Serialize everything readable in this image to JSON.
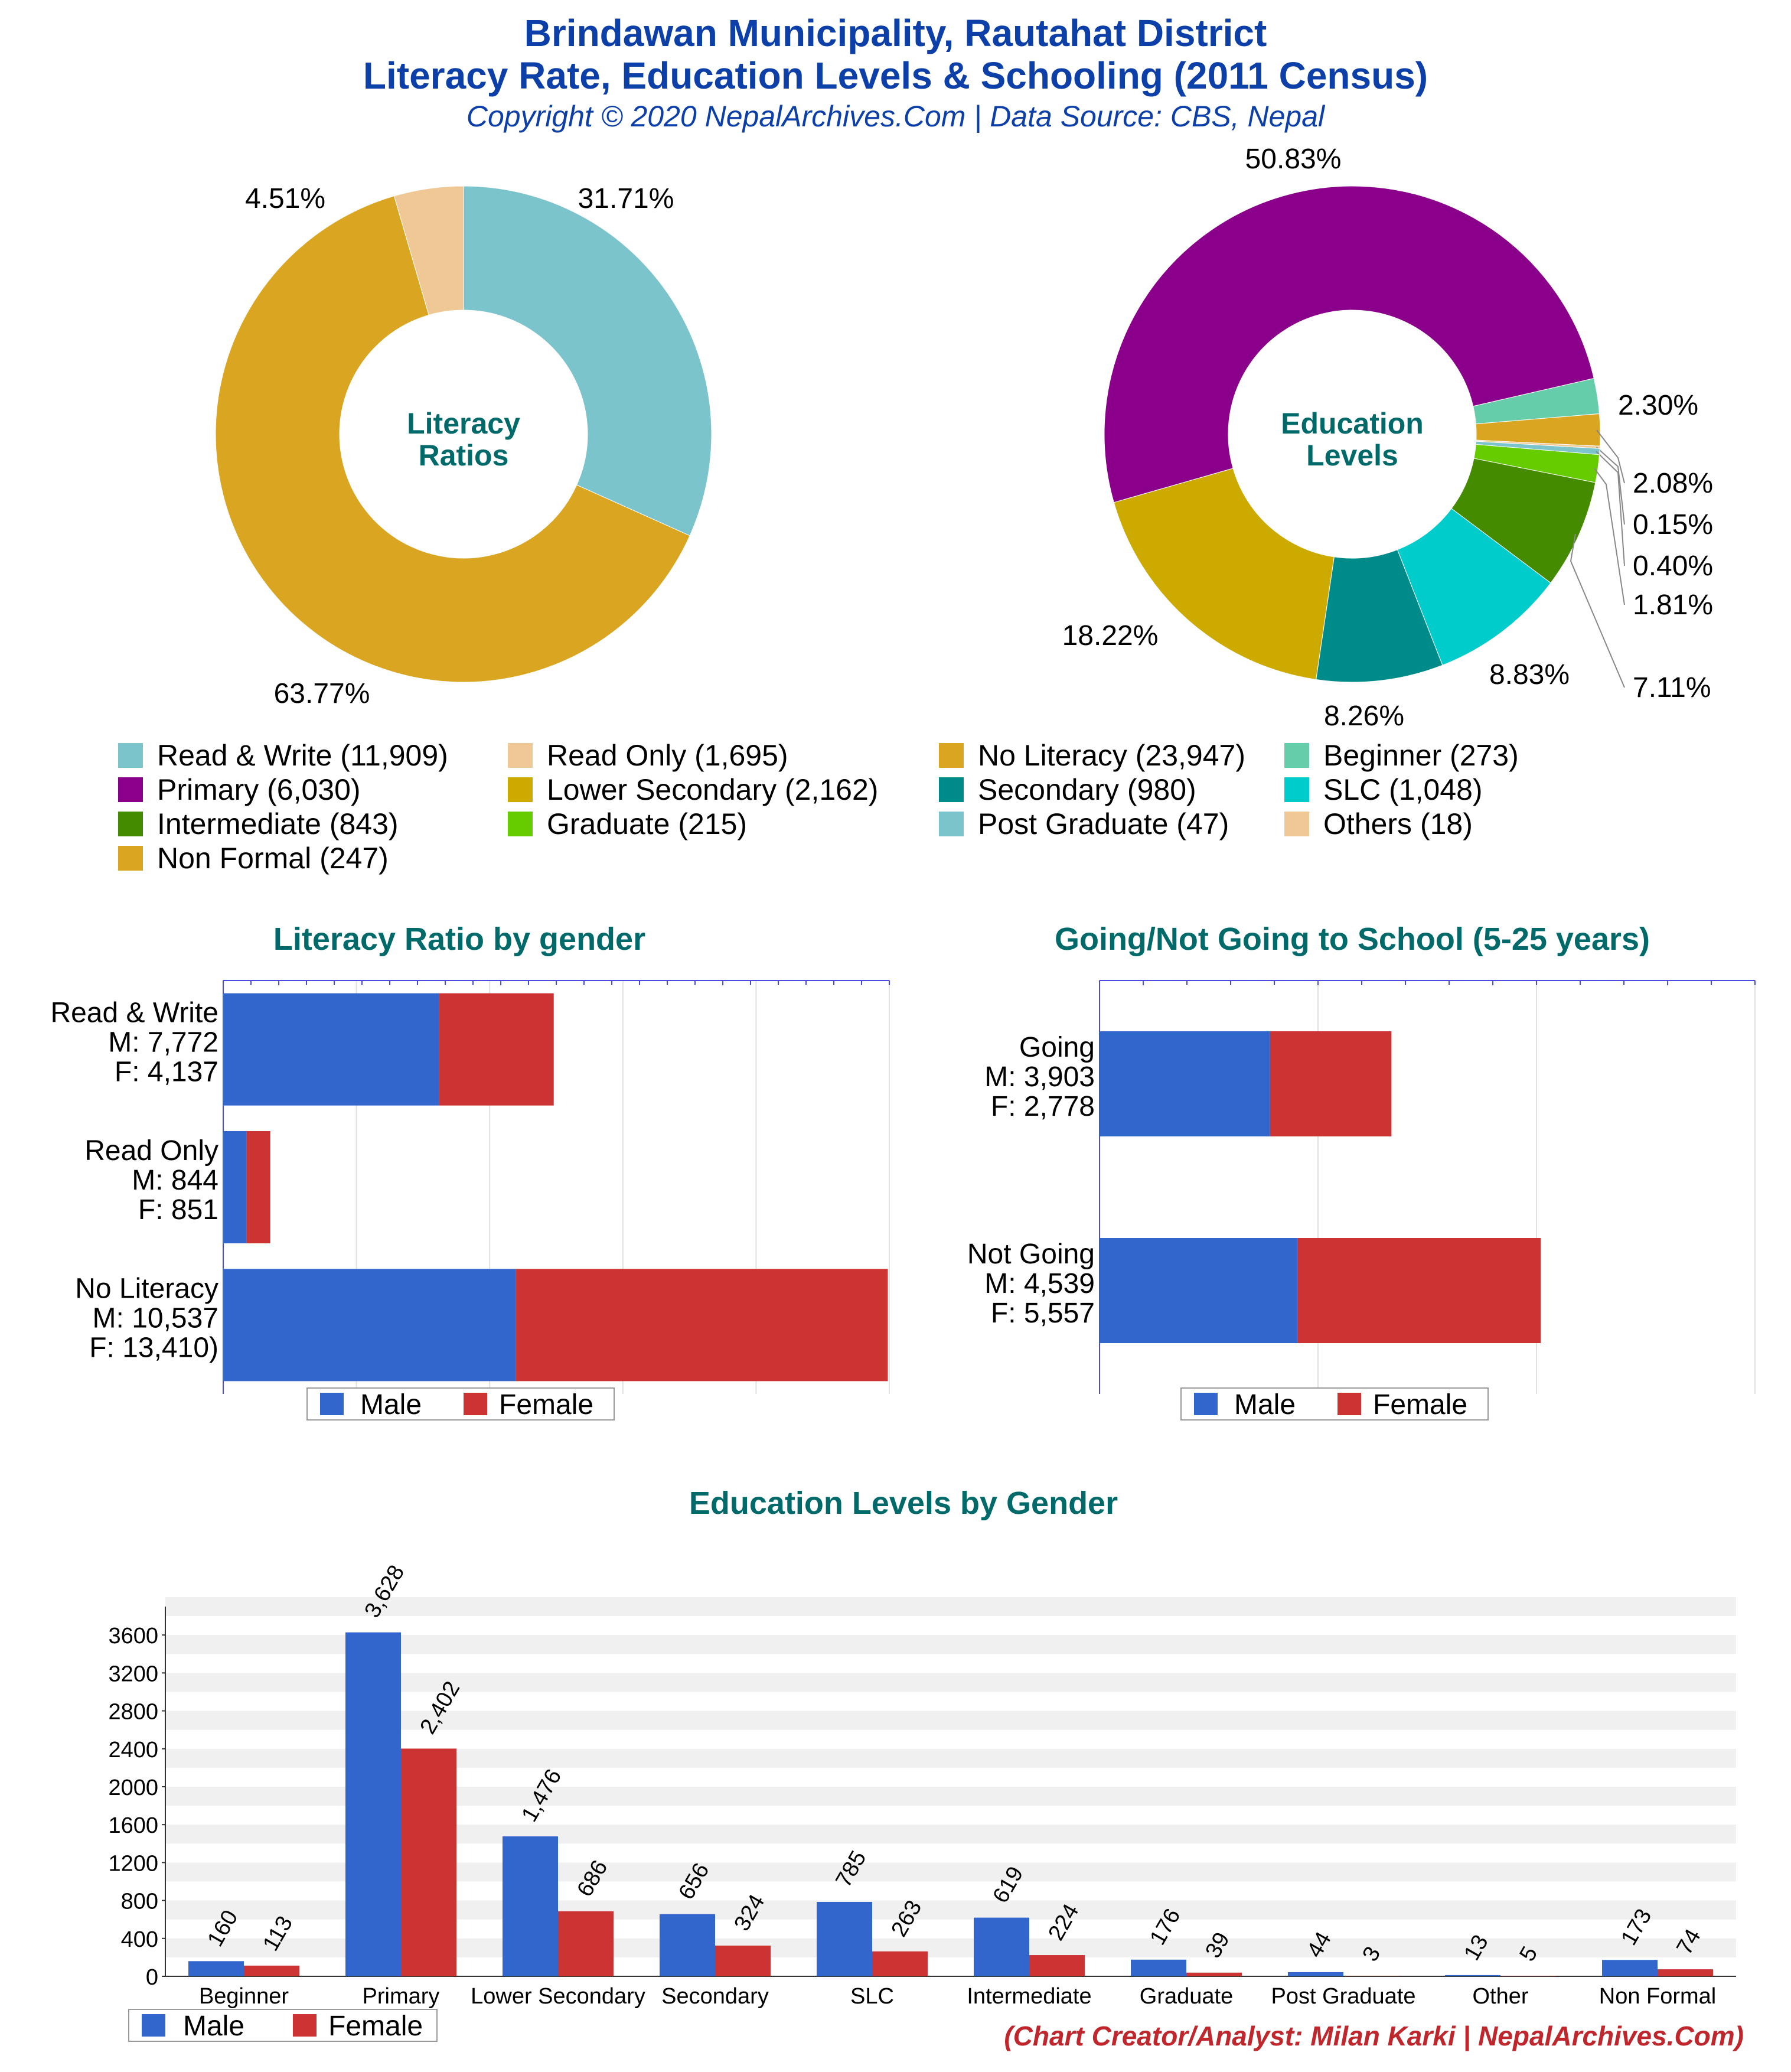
{
  "header": {
    "title_line1": "Brindawan Municipality, Rautahat District",
    "title_line2": "Literacy Rate, Education Levels & Schooling (2011 Census)",
    "copyright": "Copyright © 2020 NepalArchives.Com | Data Source: CBS, Nepal"
  },
  "footer": {
    "credit": "(Chart Creator/Analyst: Milan Karki | NepalArchives.Com)"
  },
  "colors": {
    "title": "#0d3fa8",
    "subtitle": "#006a6a",
    "male": "#3366cc",
    "female": "#cc3333"
  },
  "chart_data": [
    {
      "type": "pie",
      "title": "Literacy Ratios",
      "slices": [
        {
          "label": "Read & Write",
          "value": 11909,
          "pct": "31.71%",
          "color": "#7bc4cc"
        },
        {
          "label": "Read Only",
          "value": 1695,
          "pct": "4.51%",
          "color": "#f0c896"
        },
        {
          "label": "No Literacy",
          "value": 23947,
          "pct": "63.77%",
          "color": "#daa520"
        }
      ]
    },
    {
      "type": "pie",
      "title": "Education Levels",
      "slices": [
        {
          "label": "Beginner",
          "value": 273,
          "pct": "2.30%",
          "color": "#66cdaa"
        },
        {
          "label": "Primary",
          "value": 6030,
          "pct": "50.83%",
          "color": "#8b008b"
        },
        {
          "label": "Lower Secondary",
          "value": 2162,
          "pct": "18.22%",
          "color": "#ccaa00"
        },
        {
          "label": "Secondary",
          "value": 980,
          "pct": "8.26%",
          "color": "#008b8b"
        },
        {
          "label": "SLC",
          "value": 1048,
          "pct": "8.83%",
          "color": "#00cccc"
        },
        {
          "label": "Intermediate",
          "value": 843,
          "pct": "7.11%",
          "color": "#458b00"
        },
        {
          "label": "Graduate",
          "value": 215,
          "pct": "1.81%",
          "color": "#66cc00"
        },
        {
          "label": "Post Graduate",
          "value": 47,
          "pct": "0.40%",
          "color": "#7bc4cc"
        },
        {
          "label": "Others",
          "value": 18,
          "pct": "0.15%",
          "color": "#f0c896"
        },
        {
          "label": "Non Formal",
          "value": 247,
          "pct": "2.08%",
          "color": "#daa520"
        }
      ]
    },
    {
      "type": "bar",
      "orientation": "horizontal-stacked",
      "title": "Literacy Ratio by gender",
      "categories": [
        "Read & Write",
        "Read Only",
        "No Literacy"
      ],
      "category_labels": [
        [
          "Read & Write",
          "M: 7,772",
          "F: 4,137"
        ],
        [
          "Read Only",
          "M: 844",
          "F: 851"
        ],
        [
          "No Literacy",
          "M: 10,537",
          "F: 13,410)"
        ]
      ],
      "series": [
        {
          "name": "Male",
          "values": [
            7772,
            844,
            10537
          ]
        },
        {
          "name": "Female",
          "values": [
            4137,
            851,
            13410
          ]
        }
      ],
      "xlim": [
        0,
        24000
      ],
      "legend": "bottom"
    },
    {
      "type": "bar",
      "orientation": "horizontal-stacked",
      "title": "Going/Not Going to School (5-25 years)",
      "categories": [
        "Going",
        "Not Going"
      ],
      "category_labels": [
        [
          "Going",
          "M: 3,903",
          "F: 2,778"
        ],
        [
          "Not Going",
          "M: 4,539",
          "F: 5,557"
        ]
      ],
      "series": [
        {
          "name": "Male",
          "values": [
            3903,
            4539
          ]
        },
        {
          "name": "Female",
          "values": [
            2778,
            5557
          ]
        }
      ],
      "xlim": [
        0,
        15000
      ],
      "legend": "bottom"
    },
    {
      "type": "bar",
      "orientation": "vertical-grouped",
      "title": "Education Levels by Gender",
      "categories": [
        "Beginner",
        "Primary",
        "Lower Secondary",
        "Secondary",
        "SLC",
        "Intermediate",
        "Graduate",
        "Post Graduate",
        "Other",
        "Non Formal"
      ],
      "series": [
        {
          "name": "Male",
          "values": [
            160,
            3628,
            1476,
            656,
            785,
            619,
            176,
            44,
            13,
            173
          ],
          "labels": [
            "160",
            "3,628",
            "1,476",
            "656",
            "785",
            "619",
            "176",
            "44",
            "13",
            "173"
          ]
        },
        {
          "name": "Female",
          "values": [
            113,
            2402,
            686,
            324,
            263,
            224,
            39,
            3,
            5,
            74
          ],
          "labels": [
            "113",
            "2,402",
            "686",
            "324",
            "263",
            "224",
            "39",
            "3",
            "5",
            "74"
          ]
        }
      ],
      "yticks": [
        "0",
        "400",
        "800",
        "1200",
        "1600",
        "2000",
        "2400",
        "2800",
        "3200",
        "3600"
      ],
      "ylim": [
        0,
        3900
      ],
      "legend": "bottom-left"
    }
  ],
  "legend_labels": [
    "Read & Write (11,909)",
    "Read Only (1,695)",
    "No Literacy (23,947)",
    "Beginner (273)",
    "Primary (6,030)",
    "Lower Secondary (2,162)",
    "Secondary (980)",
    "SLC (1,048)",
    "Intermediate (843)",
    "Graduate (215)",
    "Post Graduate (47)",
    "Others (18)",
    "Non Formal (247)"
  ],
  "legend_colors": [
    "#7bc4cc",
    "#f0c896",
    "#daa520",
    "#66cdaa",
    "#8b008b",
    "#ccaa00",
    "#008b8b",
    "#00cccc",
    "#458b00",
    "#66cc00",
    "#7bc4cc",
    "#f0c896",
    "#daa520"
  ]
}
